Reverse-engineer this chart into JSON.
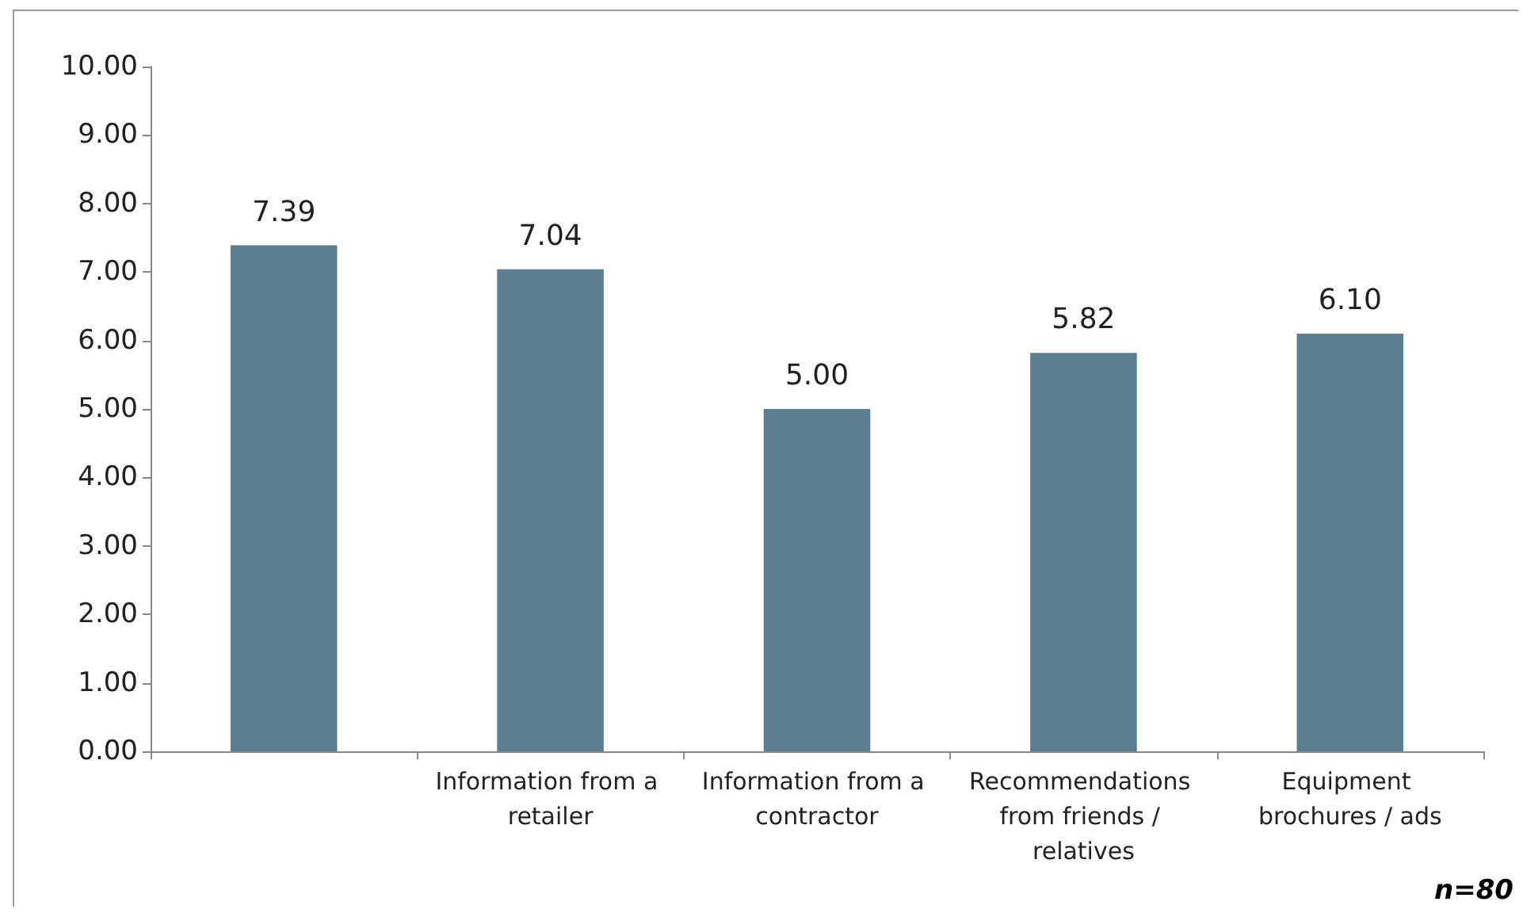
{
  "chart_data": {
    "type": "bar",
    "categories": [
      null,
      "Information from a retailer",
      "Information from a contractor",
      "Recommendations from friends / relatives",
      "Equipment brochures / ads"
    ],
    "values": [
      7.39,
      7.04,
      5.0,
      5.82,
      6.1
    ],
    "value_labels": [
      "7.39",
      "7.04",
      "5.00",
      "5.82",
      "6.10"
    ],
    "color": "#5b7f91",
    "ylim": [
      0,
      10
    ],
    "yticks": [
      {
        "value": 0,
        "label": "0.00"
      },
      {
        "value": 1,
        "label": "1.00"
      },
      {
        "value": 2,
        "label": "2.00"
      },
      {
        "value": 3,
        "label": "3.00"
      },
      {
        "value": 4,
        "label": "4.00"
      },
      {
        "value": 5,
        "label": "5.00"
      },
      {
        "value": 6,
        "label": "6.00"
      },
      {
        "value": 7,
        "label": "7.00"
      },
      {
        "value": 8,
        "label": "8.00"
      },
      {
        "value": 9,
        "label": "9.00"
      },
      {
        "value": 10,
        "label": "10.00"
      }
    ],
    "grid": false,
    "annotations": [
      "n=80"
    ]
  }
}
